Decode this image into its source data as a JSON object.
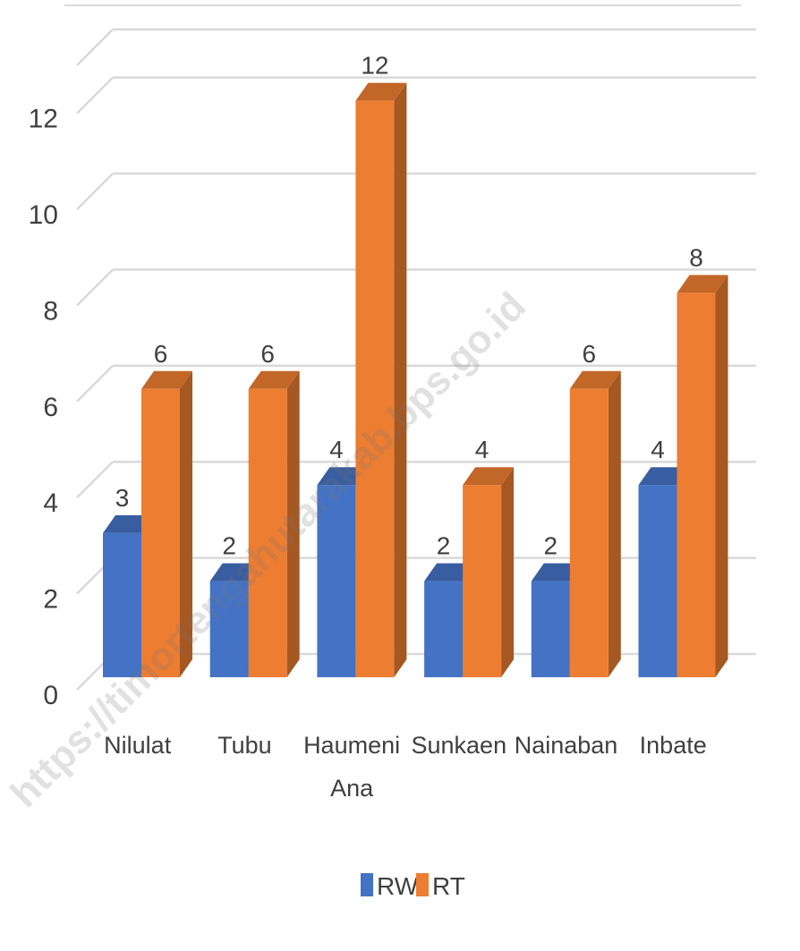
{
  "chart_data": {
    "type": "bar",
    "style": "3d-clustered-column",
    "categories": [
      [
        "Nilulat"
      ],
      [
        "Tubu"
      ],
      [
        "Haumeni",
        "Ana"
      ],
      [
        "Sunkaen"
      ],
      [
        "Nainaban"
      ],
      [
        "Inbate"
      ]
    ],
    "series": [
      {
        "name": "RW",
        "color": "#4472c4",
        "values": [
          3,
          2,
          4,
          2,
          2,
          4
        ]
      },
      {
        "name": "RT",
        "color": "#ed7d31",
        "values": [
          6,
          6,
          12,
          4,
          6,
          8
        ]
      }
    ],
    "yticks": [
      "0",
      "2",
      "4",
      "6",
      "8",
      "10",
      "12"
    ],
    "ylim": [
      0,
      13
    ],
    "grid": true,
    "data_labels": true,
    "legend": "bottom-center"
  },
  "watermark": "https://timortengahutarakab.bps.go.id"
}
